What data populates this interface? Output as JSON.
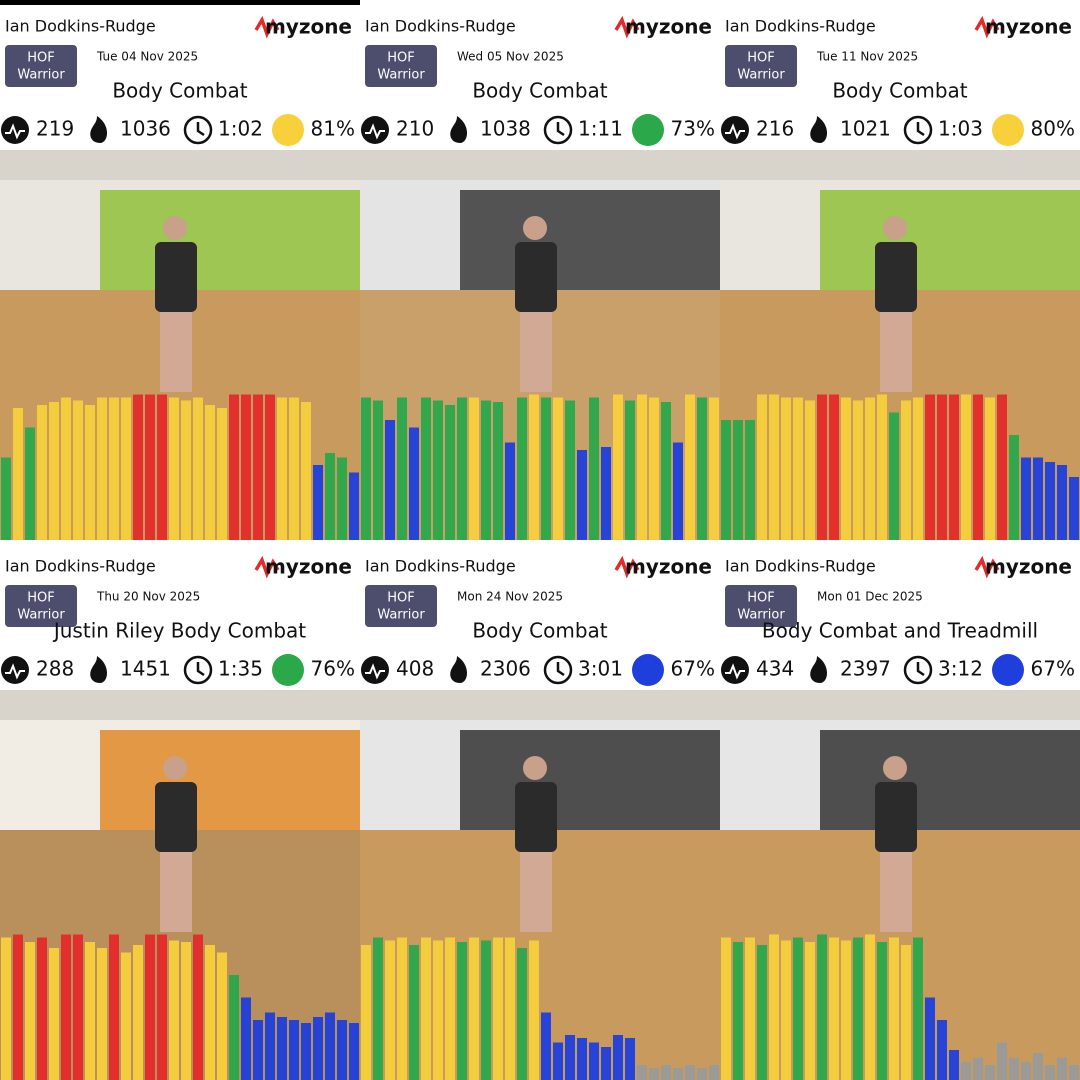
{
  "palette": [
    "#2aa84a",
    "#f7d03c",
    "#e42a2a",
    "#1f3fdc",
    "#9a9a9a"
  ],
  "cards": [
    {
      "name": "Ian Dodkins-Rudge",
      "brand": "myzone",
      "badge": [
        "HOF",
        "Warrior"
      ],
      "date": "Tue 04 Nov 2025",
      "title": "Body Combat",
      "meps": 219,
      "calories": 1036,
      "duration": "1:02",
      "effort": "81%",
      "effort_zone": 1,
      "bar_zones": [
        0,
        1,
        0,
        1,
        1,
        1,
        1,
        1,
        1,
        1,
        1,
        2,
        2,
        2,
        1,
        1,
        1,
        1,
        1,
        2,
        2,
        2,
        2,
        1,
        1,
        1,
        3,
        0,
        0,
        3
      ],
      "bar_heights": [
        55,
        88,
        75,
        90,
        92,
        95,
        93,
        90,
        95,
        95,
        95,
        97,
        97,
        97,
        95,
        93,
        95,
        90,
        88,
        97,
        97,
        97,
        97,
        95,
        95,
        92,
        50,
        58,
        55,
        45
      ]
    },
    {
      "name": "Ian Dodkins-Rudge",
      "brand": "myzone",
      "badge": [
        "HOF",
        "Warrior"
      ],
      "date": "Wed 05 Nov 2025",
      "title": "Body Combat",
      "meps": 210,
      "calories": 1038,
      "duration": "1:11",
      "effort": "73%",
      "effort_zone": 0,
      "bar_zones": [
        0,
        0,
        3,
        0,
        3,
        0,
        0,
        0,
        0,
        1,
        0,
        0,
        3,
        0,
        1,
        0,
        1,
        0,
        3,
        0,
        3,
        1,
        0,
        1,
        1,
        0,
        3,
        1,
        0,
        1
      ],
      "bar_heights": [
        95,
        93,
        80,
        95,
        75,
        95,
        93,
        90,
        95,
        95,
        93,
        92,
        65,
        95,
        97,
        95,
        95,
        93,
        60,
        95,
        62,
        97,
        93,
        97,
        95,
        92,
        65,
        97,
        95,
        95
      ]
    },
    {
      "name": "Ian Dodkins-Rudge",
      "brand": "myzone",
      "badge": [
        "HOF",
        "Warrior"
      ],
      "date": "Tue 11 Nov 2025",
      "title": "Body Combat",
      "meps": 216,
      "calories": 1021,
      "duration": "1:03",
      "effort": "80%",
      "effort_zone": 1,
      "bar_zones": [
        0,
        0,
        0,
        1,
        1,
        1,
        1,
        1,
        2,
        2,
        1,
        1,
        1,
        1,
        0,
        1,
        1,
        2,
        2,
        2,
        1,
        2,
        1,
        2,
        0,
        3,
        3,
        3,
        3,
        3
      ],
      "bar_heights": [
        80,
        80,
        80,
        97,
        97,
        95,
        95,
        93,
        97,
        97,
        95,
        93,
        95,
        97,
        85,
        93,
        95,
        97,
        97,
        97,
        97,
        97,
        95,
        97,
        70,
        55,
        55,
        52,
        50,
        42
      ]
    },
    {
      "name": "Ian Dodkins-Rudge",
      "brand": "myzone",
      "badge": [
        "HOF",
        "Warrior"
      ],
      "date": "Thu 20 Nov 2025",
      "title": "Justin Riley Body Combat",
      "meps": 288,
      "calories": 1451,
      "duration": "1:35",
      "effort": "76%",
      "effort_zone": 0,
      "bar_zones": [
        1,
        2,
        1,
        2,
        1,
        2,
        2,
        1,
        1,
        2,
        1,
        1,
        2,
        2,
        1,
        1,
        2,
        1,
        1,
        0,
        3,
        3,
        3,
        3,
        3,
        3,
        3,
        3,
        3,
        3
      ],
      "bar_heights": [
        95,
        97,
        92,
        95,
        88,
        97,
        97,
        92,
        88,
        97,
        85,
        90,
        97,
        97,
        93,
        92,
        97,
        90,
        85,
        70,
        55,
        40,
        45,
        42,
        40,
        38,
        42,
        45,
        40,
        38
      ]
    },
    {
      "name": "Ian Dodkins-Rudge",
      "brand": "myzone",
      "badge": [
        "HOF",
        "Warrior"
      ],
      "date": "Mon 24 Nov 2025",
      "title": "Body Combat",
      "meps": 408,
      "calories": 2306,
      "duration": "3:01",
      "effort": "67%",
      "effort_zone": 3,
      "bar_zones": [
        1,
        0,
        1,
        1,
        0,
        1,
        1,
        1,
        0,
        1,
        0,
        1,
        1,
        0,
        1,
        3,
        3,
        3,
        3,
        3,
        3,
        3,
        3,
        4,
        4,
        4,
        4,
        4,
        4,
        4
      ],
      "bar_heights": [
        90,
        95,
        93,
        95,
        90,
        95,
        93,
        95,
        92,
        95,
        93,
        95,
        95,
        88,
        93,
        45,
        25,
        30,
        28,
        25,
        22,
        30,
        28,
        10,
        8,
        10,
        8,
        10,
        8,
        10
      ]
    },
    {
      "name": "Ian Dodkins-Rudge",
      "brand": "myzone",
      "badge": [
        "HOF",
        "Warrior"
      ],
      "date": "Mon 01 Dec 2025",
      "title": "Body Combat and Treadmill",
      "meps": 434,
      "calories": 2397,
      "duration": "3:12",
      "effort": "67%",
      "effort_zone": 3,
      "bar_zones": [
        1,
        0,
        1,
        0,
        1,
        1,
        0,
        1,
        0,
        1,
        1,
        0,
        1,
        0,
        1,
        1,
        0,
        3,
        3,
        3,
        4,
        4,
        4,
        4,
        4,
        4,
        4,
        4,
        4,
        4
      ],
      "bar_heights": [
        95,
        92,
        95,
        90,
        97,
        93,
        95,
        92,
        97,
        95,
        93,
        95,
        97,
        92,
        95,
        90,
        95,
        55,
        40,
        20,
        12,
        15,
        10,
        25,
        15,
        12,
        18,
        10,
        15,
        10
      ]
    }
  ]
}
